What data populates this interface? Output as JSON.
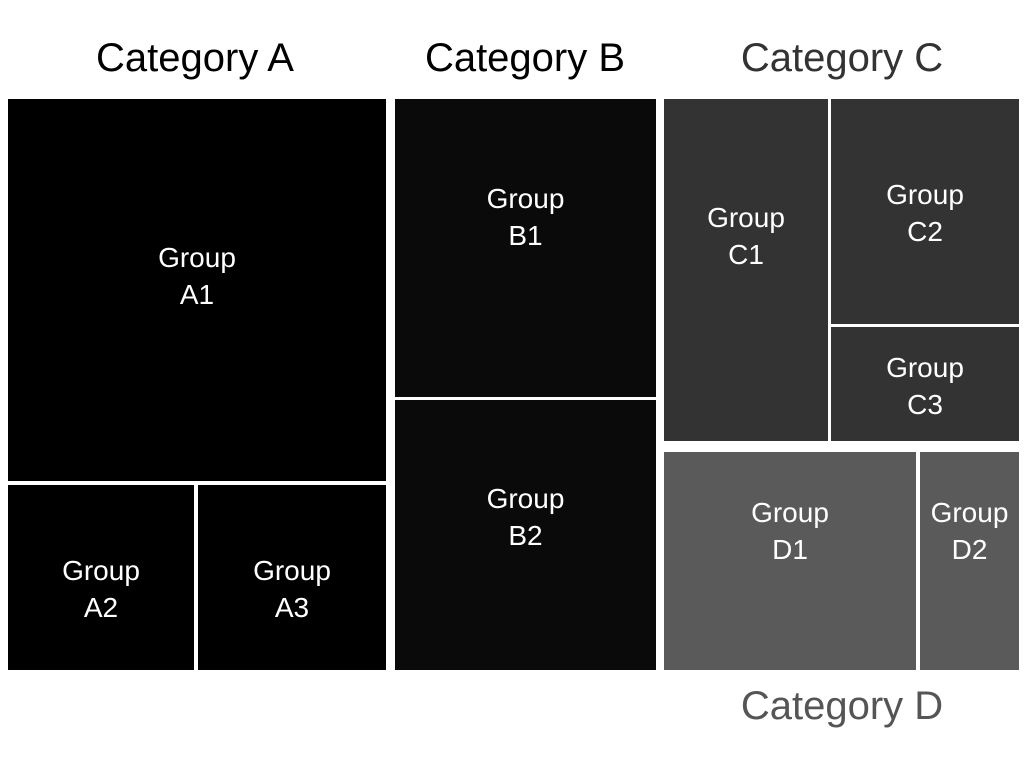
{
  "chart_data": {
    "type": "treemap",
    "categories": [
      {
        "name": "Category A",
        "color": "#000000",
        "groups": [
          {
            "name": "Group A1"
          },
          {
            "name": "Group A2"
          },
          {
            "name": "Group A3"
          }
        ]
      },
      {
        "name": "Category B",
        "color": "#0a0a0a",
        "groups": [
          {
            "name": "Group B1"
          },
          {
            "name": "Group B2"
          }
        ]
      },
      {
        "name": "Category C",
        "color": "#333333",
        "groups": [
          {
            "name": "Group C1"
          },
          {
            "name": "Group C2"
          },
          {
            "name": "Group C3"
          }
        ]
      },
      {
        "name": "Category D",
        "color": "#5a5a5a",
        "groups": [
          {
            "name": "Group D1"
          },
          {
            "name": "Group D2"
          }
        ]
      }
    ]
  },
  "labels": {
    "a1": [
      "Group",
      "A1"
    ],
    "a2": [
      "Group",
      "A2"
    ],
    "a3": [
      "Group",
      "A3"
    ],
    "b1": [
      "Group",
      "B1"
    ],
    "b2": [
      "Group",
      "B2"
    ],
    "c1": [
      "Group",
      "C1"
    ],
    "c2": [
      "Group",
      "C2"
    ],
    "c3": [
      "Group",
      "C3"
    ],
    "d1": [
      "Group",
      "D1"
    ],
    "d2": [
      "Group",
      "D2"
    ]
  }
}
